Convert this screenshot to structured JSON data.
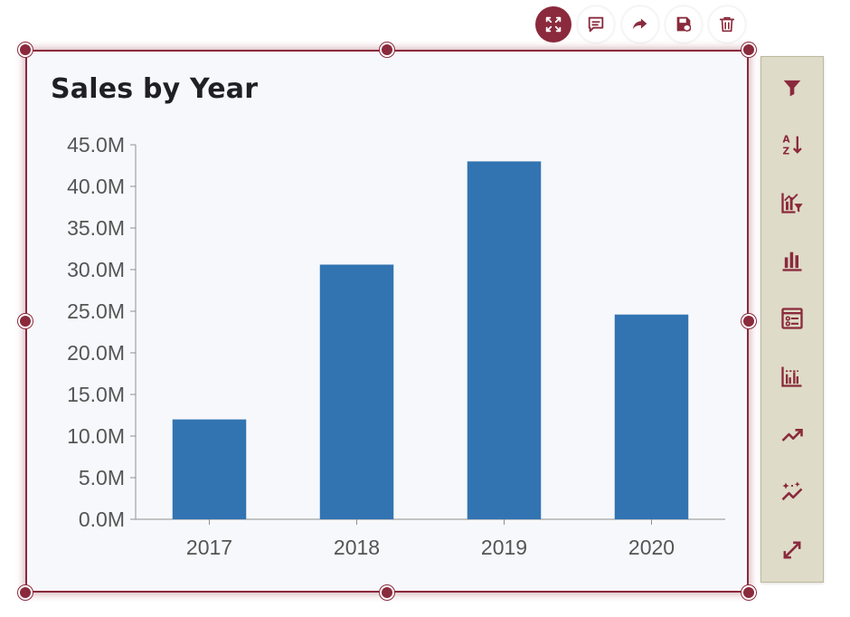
{
  "toolbar": {
    "tools": [
      {
        "icon": "expand-icon",
        "active": true
      },
      {
        "icon": "comment-icon"
      },
      {
        "icon": "share-icon"
      },
      {
        "icon": "save-icon"
      },
      {
        "icon": "trash-icon"
      }
    ]
  },
  "side_toolbar": {
    "tools": [
      {
        "icon": "filter-icon"
      },
      {
        "icon": "sort-az-icon"
      },
      {
        "icon": "chart-filter-icon"
      },
      {
        "icon": "bar-chart-icon"
      },
      {
        "icon": "legend-icon"
      },
      {
        "icon": "grouped-bars-icon"
      },
      {
        "icon": "trend-line-icon"
      },
      {
        "icon": "smart-trend-icon"
      },
      {
        "icon": "resize-icon"
      }
    ]
  },
  "colors": {
    "accent": "#8a2a3c",
    "bar": "#3274b1",
    "card_bg": "#f7f8fb",
    "side_bg": "#dedbc8"
  },
  "chart_data": {
    "type": "bar",
    "title": "Sales by Year",
    "categories": [
      "2017",
      "2018",
      "2019",
      "2020"
    ],
    "values": [
      12.0,
      30.6,
      43.0,
      24.6
    ],
    "unit_suffix": "M",
    "ylim": [
      0,
      45
    ],
    "yticks": [
      "0.0M",
      "5.0M",
      "10.0M",
      "15.0M",
      "20.0M",
      "25.0M",
      "30.0M",
      "35.0M",
      "40.0M",
      "45.0M"
    ],
    "grid": false,
    "legend": "none"
  }
}
